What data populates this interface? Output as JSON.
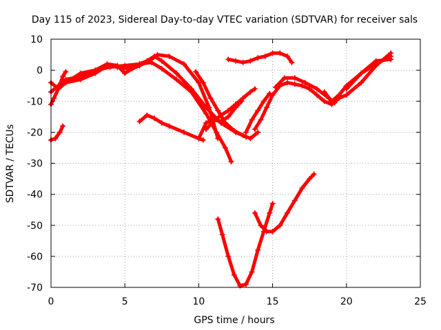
{
  "chart_data": {
    "type": "line",
    "title": "Day 115 of 2023, Sidereal Day-to-day VTEC variation (SDTVAR) for receiver sals",
    "xlabel": "GPS time / hours",
    "ylabel": "SDTVAR / TECUs",
    "xlim": [
      0,
      25
    ],
    "ylim": [
      -70,
      10
    ],
    "xticks": [
      0,
      5,
      10,
      15,
      20,
      25
    ],
    "yticks": [
      10,
      0,
      -10,
      -20,
      -30,
      -40,
      -50,
      -60,
      -70
    ],
    "grid": true,
    "legend": "none",
    "series_color": "#ff0000",
    "series": [
      {
        "x": [
          0.0,
          0.3,
          0.6,
          0.8
        ],
        "y": [
          -22.5,
          -22,
          -20,
          -18
        ]
      },
      {
        "x": [
          0.0,
          0.2,
          0.5,
          0.8,
          1.0
        ],
        "y": [
          -11,
          -9,
          -6,
          -2,
          -0.5
        ]
      },
      {
        "x": [
          0.0,
          0.5,
          1.0,
          2.0,
          3.0,
          3.8,
          4.5,
          5.2,
          6.0,
          6.8,
          7.5,
          8.5,
          9.5,
          10.5,
          11.2,
          11.8,
          12.2
        ],
        "y": [
          -4,
          -6,
          -4,
          -3,
          -1,
          1.5,
          1.0,
          0.5,
          2.0,
          2.5,
          0.5,
          -3,
          -7,
          -14,
          -20,
          -25,
          -29.5
        ]
      },
      {
        "x": [
          0.0,
          0.5,
          1.0,
          2.0,
          3.0,
          3.8,
          4.5,
          5.0,
          5.5,
          6.0,
          6.8,
          7.2,
          8.0,
          9.0,
          10.0,
          10.7,
          11.3
        ],
        "y": [
          -7,
          -5,
          -3,
          -2,
          0,
          2,
          1.5,
          -1,
          0.5,
          1.5,
          3.5,
          5,
          4.5,
          2,
          -4,
          -12,
          -22
        ]
      },
      {
        "x": [
          0.5,
          1.0,
          2.0,
          3.0,
          4.0,
          5.0,
          6.0,
          6.5,
          7.0,
          7.5,
          8.5,
          9.5,
          10.5,
          11.5,
          12.5,
          13.2
        ],
        "y": [
          -5,
          -4,
          -1,
          0,
          1,
          1.5,
          2.0,
          3.0,
          4.5,
          3.0,
          -1,
          -6,
          -12,
          -17,
          -20,
          -21.5
        ]
      },
      {
        "x": [
          6.0,
          6.5,
          7.0,
          7.5,
          8.0,
          9.0,
          10.0,
          10.3
        ],
        "y": [
          -16.5,
          -14.5,
          -15.5,
          -17,
          -18,
          -20,
          -22,
          -22.5
        ]
      },
      {
        "x": [
          10.0,
          10.5,
          11.0,
          11.5,
          12.0,
          12.5,
          12.9
        ],
        "y": [
          -22,
          -17,
          -16,
          -16.5,
          -15,
          -12,
          -10
        ]
      },
      {
        "x": [
          10.5,
          11.0,
          11.5,
          12.0,
          12.5,
          13.0,
          13.5,
          13.8
        ],
        "y": [
          -19,
          -16.5,
          -14.5,
          -13,
          -11,
          -9,
          -7,
          -6
        ]
      },
      {
        "x": [
          9.8,
          10.3,
          10.8,
          11.3,
          11.8,
          12.4,
          13.0,
          13.5,
          14.0
        ],
        "y": [
          -0.5,
          -4,
          -9,
          -13,
          -17,
          -19.5,
          -21,
          -22,
          -20
        ]
      },
      {
        "x": [
          13.2,
          13.6,
          14.0,
          14.4,
          14.8
        ],
        "y": [
          -20,
          -16,
          -13,
          -10,
          -7.5
        ]
      },
      {
        "x": [
          13.8,
          14.2,
          14.6,
          15.0,
          15.5,
          16.0,
          16.5,
          17.0,
          17.5,
          18.0,
          18.5,
          19.0,
          19.5,
          20.0,
          21.0,
          22.0,
          23.0
        ],
        "y": [
          -19,
          -16,
          -12,
          -8,
          -5,
          -4,
          -4.5,
          -5,
          -6,
          -8,
          -10,
          -11,
          -9,
          -8,
          -4,
          1.5,
          5.5
        ]
      },
      {
        "x": [
          15.2,
          15.8,
          16.5,
          17.2,
          18.0,
          18.8,
          19.2
        ],
        "y": [
          -5.5,
          -2.5,
          -2.5,
          -4,
          -6,
          -9,
          -10.5
        ]
      },
      {
        "x": [
          18.5,
          19.0,
          19.5,
          20.0,
          21.0,
          22.0,
          23.0
        ],
        "y": [
          -7,
          -10,
          -8,
          -5,
          -1,
          2,
          4.5
        ]
      },
      {
        "x": [
          20.0,
          21.0,
          22.0,
          23.0
        ],
        "y": [
          -6,
          -1,
          3,
          3.5
        ]
      },
      {
        "x": [
          12.0,
          12.5,
          13.0,
          13.5,
          14.0,
          14.5,
          15.0,
          15.5,
          16.0,
          16.3
        ],
        "y": [
          3.5,
          3,
          2.5,
          3,
          4,
          4.5,
          5.5,
          5.5,
          4.5,
          2.5
        ]
      },
      {
        "x": [
          11.3,
          11.6,
          12.0,
          12.4,
          12.8,
          13.2,
          13.6,
          14.0,
          14.4,
          14.8,
          15.0
        ],
        "y": [
          -48,
          -53,
          -60,
          -66,
          -69.5,
          -69,
          -65,
          -58,
          -52,
          -46,
          -43
        ]
      },
      {
        "x": [
          13.8,
          14.2,
          14.6,
          15.0,
          15.5,
          16.0,
          16.5,
          17.0,
          17.5,
          17.8
        ],
        "y": [
          -46,
          -50,
          -52,
          -52,
          -50,
          -46,
          -42,
          -38,
          -35,
          -33.5
        ]
      }
    ]
  }
}
